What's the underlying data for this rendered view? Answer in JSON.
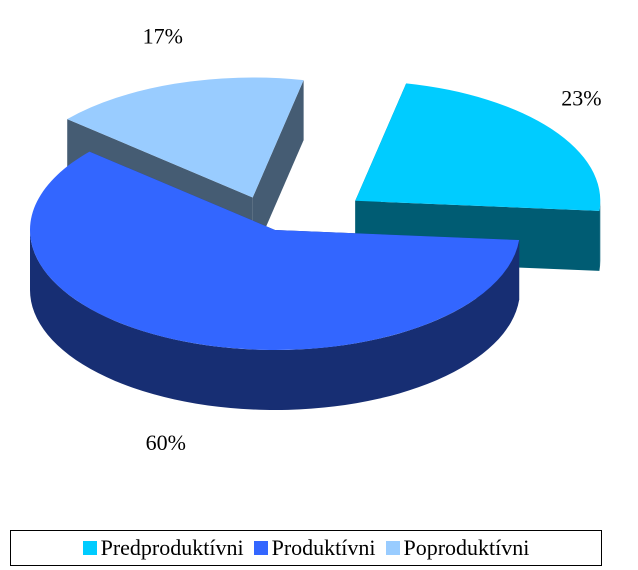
{
  "chart_data": {
    "type": "pie3d",
    "categories": [
      "Predproduktívni",
      "Produktívni",
      "Poproduktívni"
    ],
    "values": [
      23,
      60,
      17
    ],
    "value_labels": [
      "23%",
      "60%",
      "17%"
    ],
    "colors": [
      "#00ccff",
      "#3366ff",
      "#99ccff"
    ],
    "legend": "bottom"
  }
}
